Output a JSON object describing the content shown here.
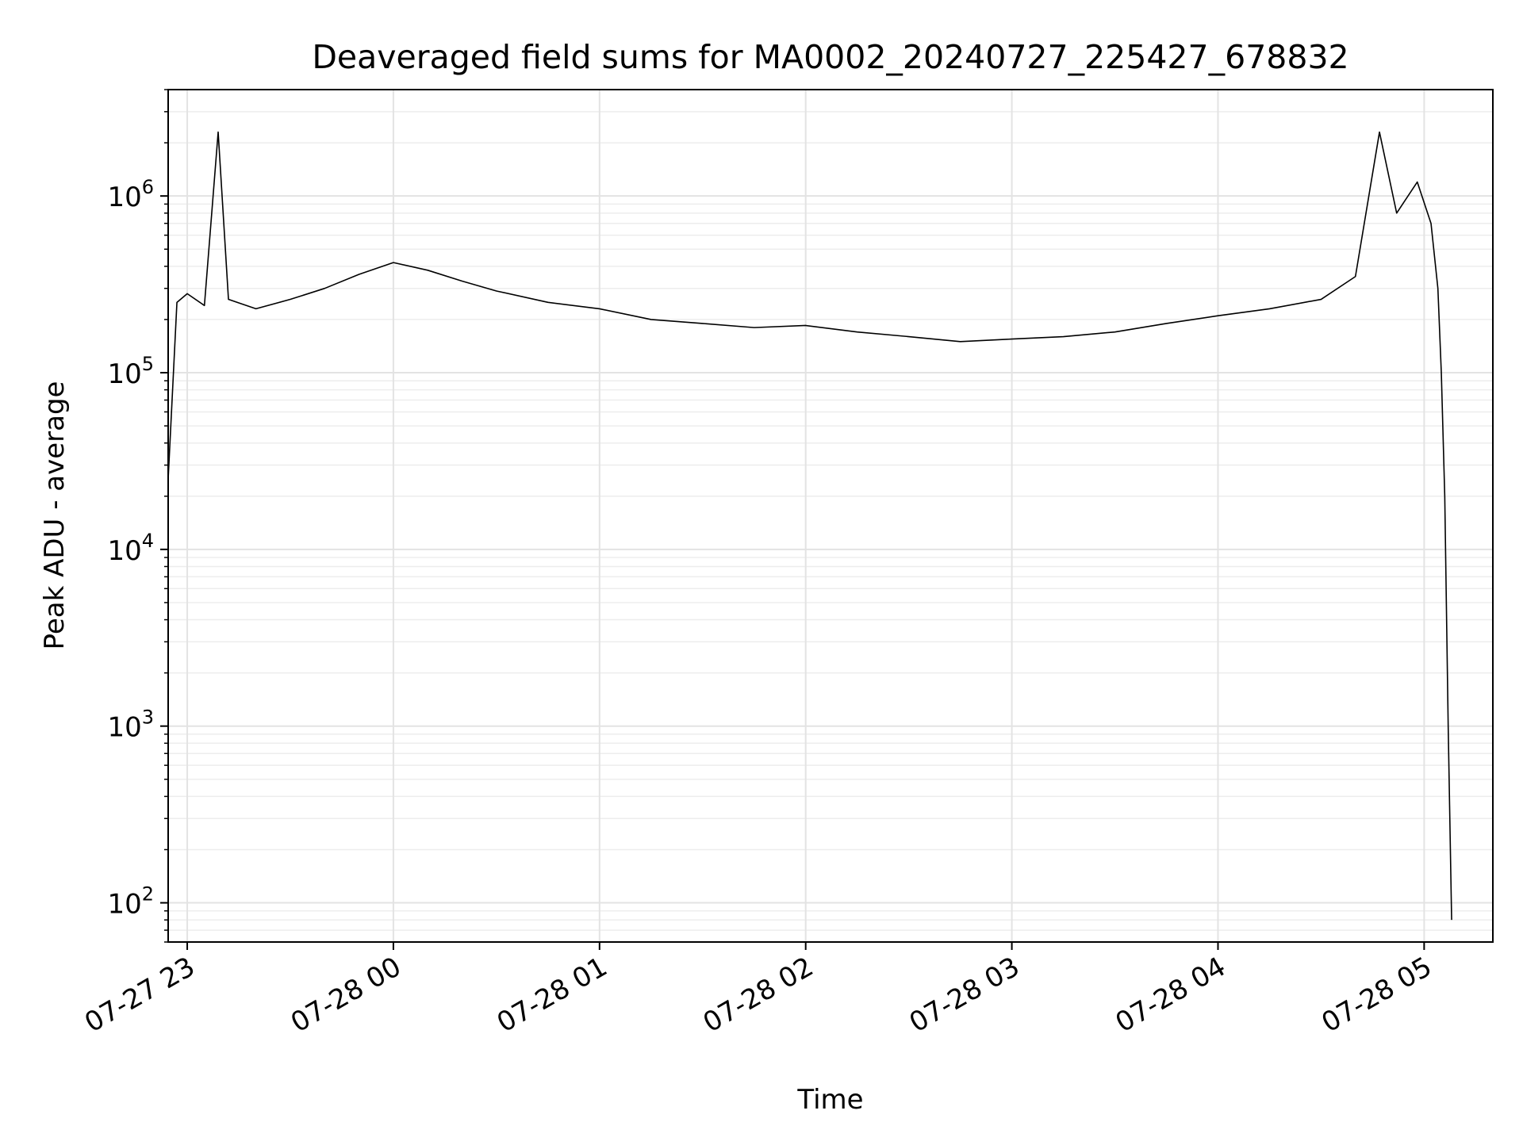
{
  "chart_data": {
    "type": "line",
    "title": "Deaveraged field sums for MA0002_20240727_225427_678832",
    "xlabel": "Time",
    "ylabel": "Peak ADU - average",
    "x_axis": {
      "type": "datetime",
      "range": [
        "2024-07-27T22:54:27",
        "2024-07-28T05:20:00"
      ],
      "ticks": [
        "2024-07-27T23:00",
        "2024-07-28T00:00",
        "2024-07-28T01:00",
        "2024-07-28T02:00",
        "2024-07-28T03:00",
        "2024-07-28T04:00",
        "2024-07-28T05:00"
      ],
      "tick_labels": [
        "07-27 23",
        "07-28 00",
        "07-28 01",
        "07-28 02",
        "07-28 03",
        "07-28 04",
        "07-28 05"
      ],
      "tick_label_rotation": 30
    },
    "y_axis": {
      "scale": "log",
      "range": [
        60,
        4000000
      ],
      "ticks": [
        100,
        1000,
        10000,
        100000,
        1000000
      ],
      "tick_labels": [
        {
          "base": "10",
          "exp": "2"
        },
        {
          "base": "10",
          "exp": "3"
        },
        {
          "base": "10",
          "exp": "4"
        },
        {
          "base": "10",
          "exp": "5"
        },
        {
          "base": "10",
          "exp": "6"
        }
      ]
    },
    "grid": true,
    "minor_grid": true,
    "legend": "none",
    "series": [
      {
        "color": "#000000",
        "points": [
          {
            "x": "2024-07-27T22:54:27",
            "y": 25000
          },
          {
            "x": "2024-07-27T22:57:00",
            "y": 250000
          },
          {
            "x": "2024-07-27T23:00:00",
            "y": 280000
          },
          {
            "x": "2024-07-27T23:05:00",
            "y": 240000
          },
          {
            "x": "2024-07-27T23:09:00",
            "y": 2300000
          },
          {
            "x": "2024-07-27T23:12:00",
            "y": 260000
          },
          {
            "x": "2024-07-27T23:20:00",
            "y": 230000
          },
          {
            "x": "2024-07-27T23:30:00",
            "y": 260000
          },
          {
            "x": "2024-07-27T23:40:00",
            "y": 300000
          },
          {
            "x": "2024-07-27T23:50:00",
            "y": 360000
          },
          {
            "x": "2024-07-28T00:00:00",
            "y": 420000
          },
          {
            "x": "2024-07-28T00:10:00",
            "y": 380000
          },
          {
            "x": "2024-07-28T00:20:00",
            "y": 330000
          },
          {
            "x": "2024-07-28T00:30:00",
            "y": 290000
          },
          {
            "x": "2024-07-28T00:45:00",
            "y": 250000
          },
          {
            "x": "2024-07-28T01:00:00",
            "y": 230000
          },
          {
            "x": "2024-07-28T01:15:00",
            "y": 200000
          },
          {
            "x": "2024-07-28T01:30:00",
            "y": 190000
          },
          {
            "x": "2024-07-28T01:45:00",
            "y": 180000
          },
          {
            "x": "2024-07-28T02:00:00",
            "y": 185000
          },
          {
            "x": "2024-07-28T02:15:00",
            "y": 170000
          },
          {
            "x": "2024-07-28T02:30:00",
            "y": 160000
          },
          {
            "x": "2024-07-28T02:45:00",
            "y": 150000
          },
          {
            "x": "2024-07-28T03:00:00",
            "y": 155000
          },
          {
            "x": "2024-07-28T03:15:00",
            "y": 160000
          },
          {
            "x": "2024-07-28T03:30:00",
            "y": 170000
          },
          {
            "x": "2024-07-28T03:45:00",
            "y": 190000
          },
          {
            "x": "2024-07-28T04:00:00",
            "y": 210000
          },
          {
            "x": "2024-07-28T04:15:00",
            "y": 230000
          },
          {
            "x": "2024-07-28T04:30:00",
            "y": 260000
          },
          {
            "x": "2024-07-28T04:40:00",
            "y": 350000
          },
          {
            "x": "2024-07-28T04:47:00",
            "y": 2300000
          },
          {
            "x": "2024-07-28T04:52:00",
            "y": 800000
          },
          {
            "x": "2024-07-28T04:58:00",
            "y": 1200000
          },
          {
            "x": "2024-07-28T05:02:00",
            "y": 700000
          },
          {
            "x": "2024-07-28T05:04:00",
            "y": 300000
          },
          {
            "x": "2024-07-28T05:05:00",
            "y": 100000
          },
          {
            "x": "2024-07-28T05:06:00",
            "y": 20000
          },
          {
            "x": "2024-07-28T05:07:00",
            "y": 1000
          },
          {
            "x": "2024-07-28T05:08:00",
            "y": 80
          }
        ]
      }
    ]
  }
}
